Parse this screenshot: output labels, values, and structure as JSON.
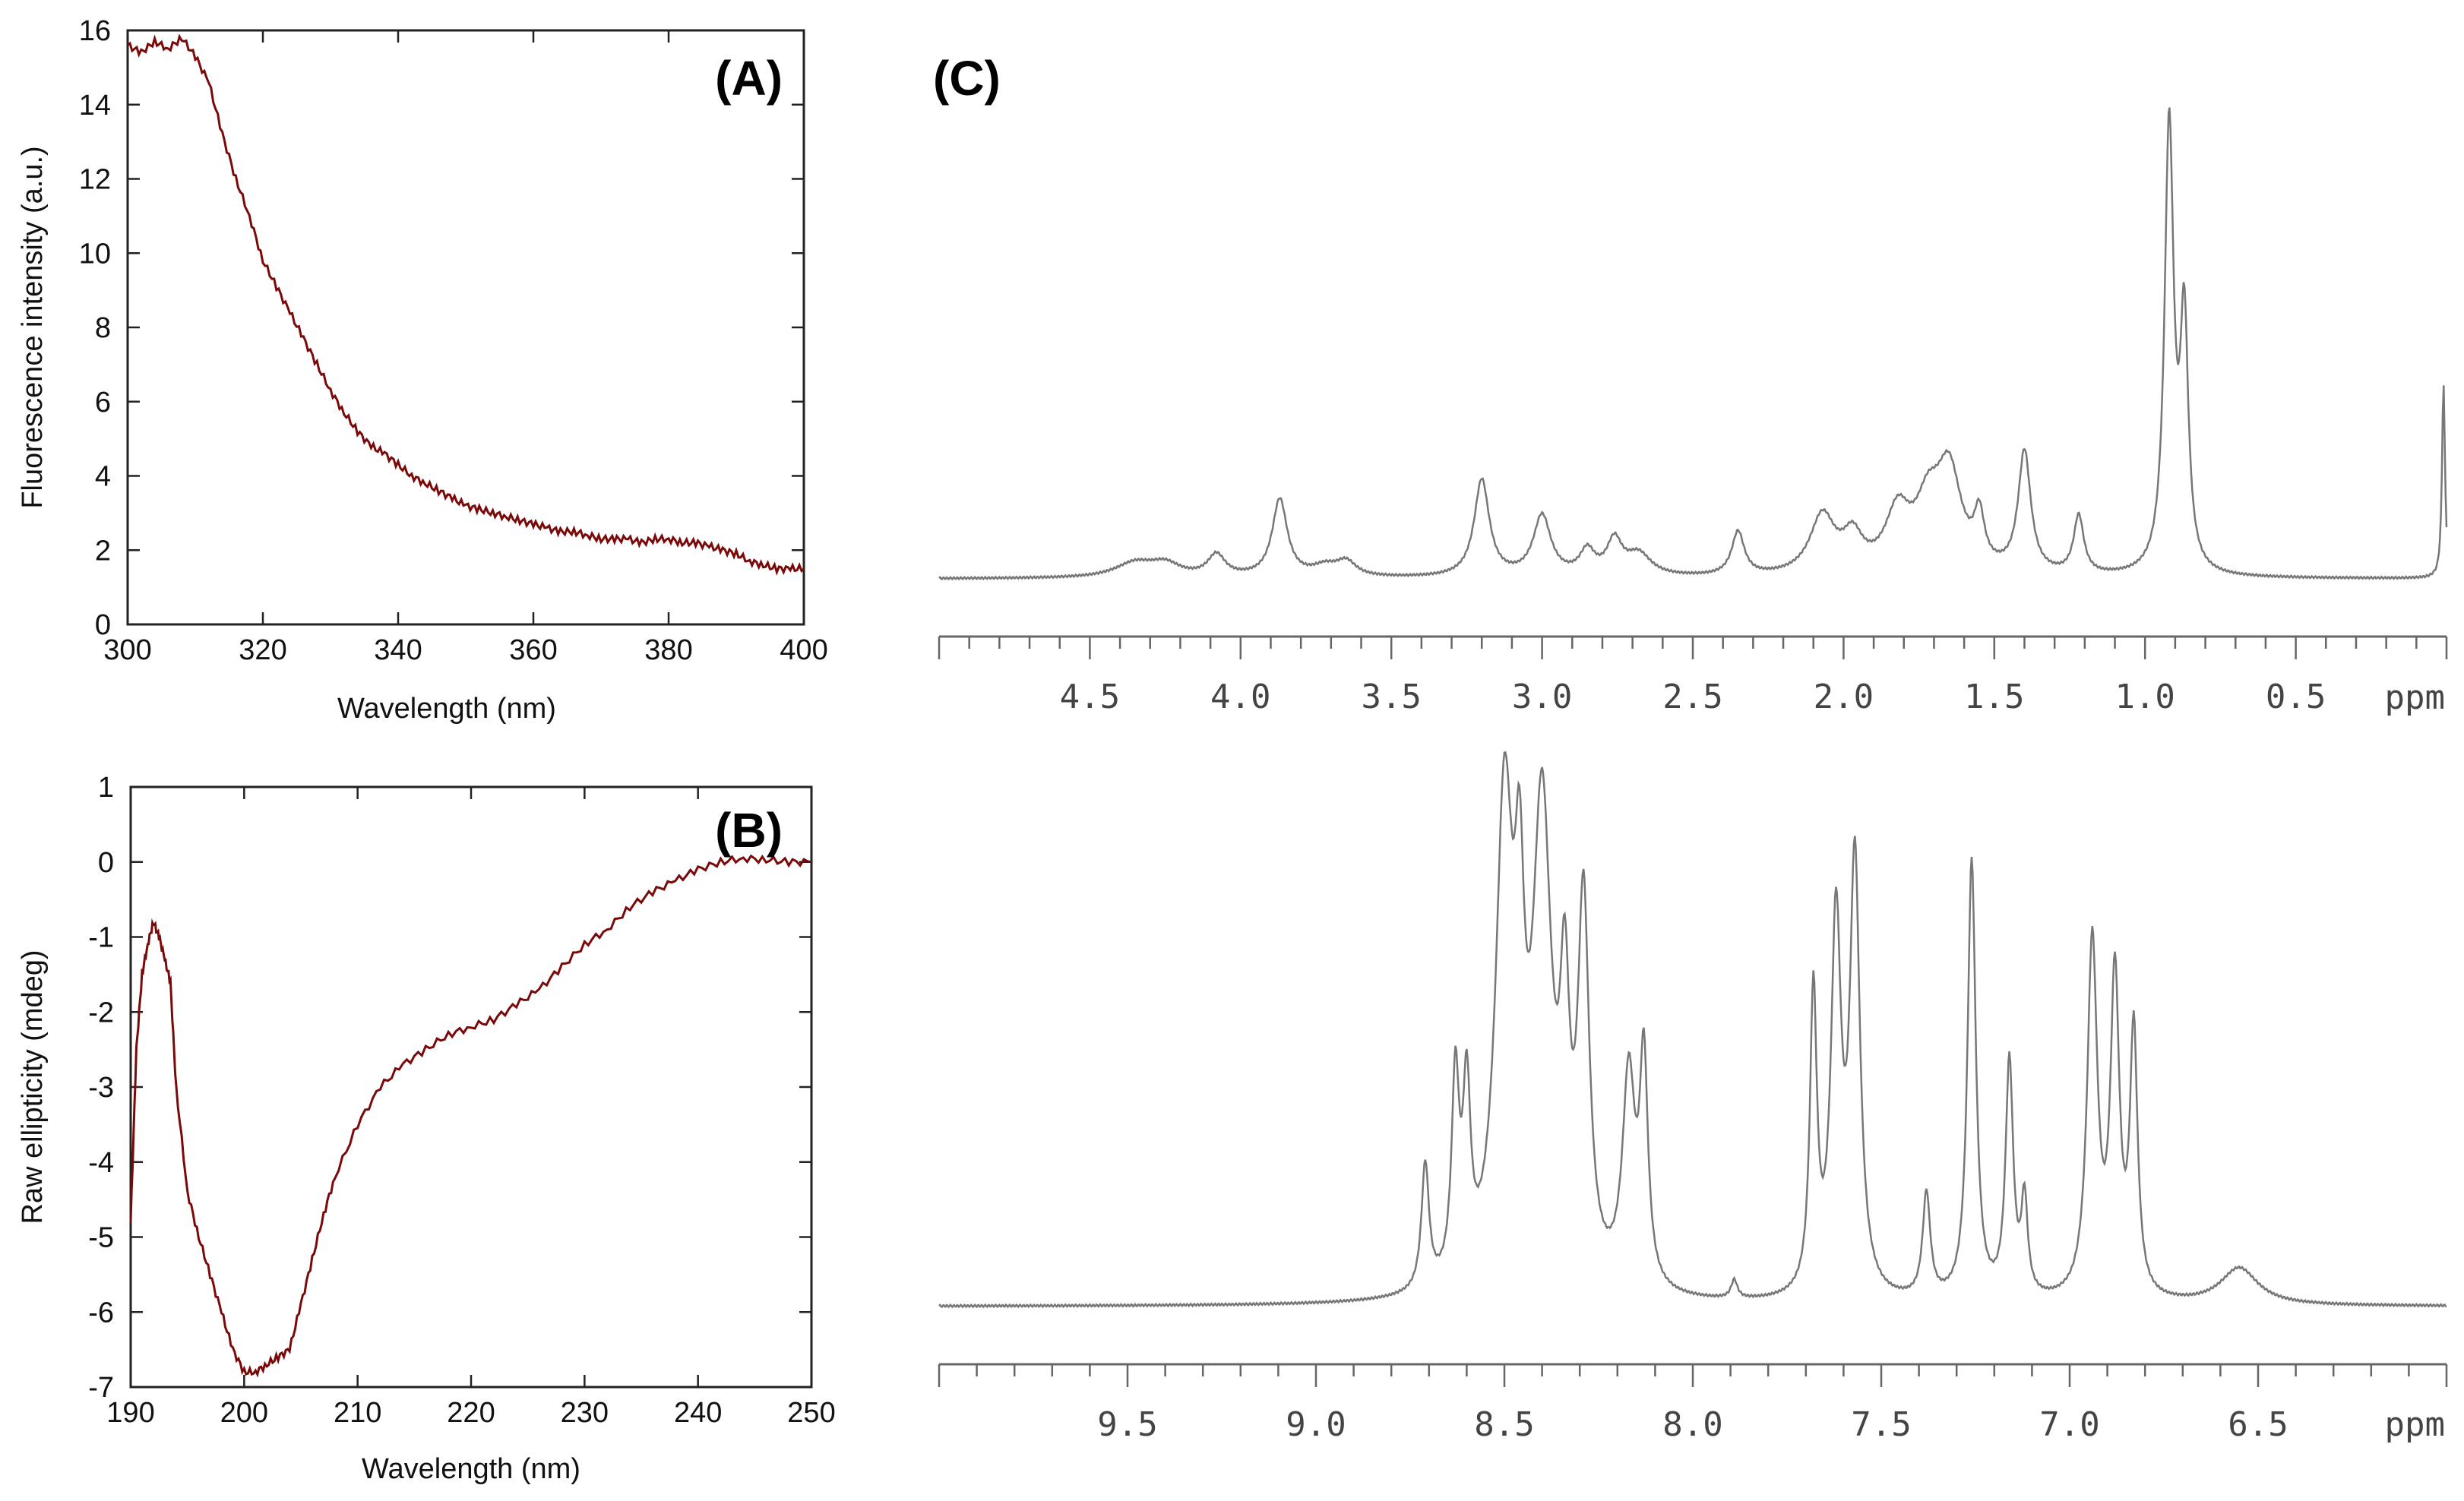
{
  "chart_data": [
    {
      "panel": "(A)",
      "type": "line",
      "xlabel": "Wavelength (nm)",
      "ylabel": "Fluorescence intensity (a.u.)",
      "xlim": [
        300,
        400
      ],
      "ylim": [
        0,
        16
      ],
      "xticks": [
        300,
        320,
        340,
        360,
        380,
        400
      ],
      "yticks": [
        0,
        2,
        4,
        6,
        8,
        10,
        12,
        14,
        16
      ],
      "grid": false,
      "line_color": "#7a0a0a",
      "series": [
        {
          "x": [
            300,
            302,
            304,
            306,
            308,
            310,
            312,
            314,
            316,
            318,
            320,
            322,
            324,
            326,
            328,
            330,
            332,
            334,
            336,
            338,
            340,
            342,
            344,
            346,
            348,
            350,
            352,
            354,
            356,
            358,
            360,
            362,
            364,
            366,
            368,
            370,
            372,
            374,
            376,
            378,
            380,
            382,
            384,
            386,
            388,
            390,
            392,
            394,
            396,
            398,
            400
          ],
          "y": [
            15.6,
            15.4,
            15.7,
            15.5,
            15.8,
            15.3,
            14.6,
            13.2,
            12.0,
            11.0,
            9.8,
            9.1,
            8.4,
            7.7,
            7.0,
            6.3,
            5.7,
            5.2,
            4.8,
            4.6,
            4.3,
            4.0,
            3.8,
            3.6,
            3.4,
            3.2,
            3.1,
            3.0,
            2.9,
            2.8,
            2.7,
            2.6,
            2.5,
            2.5,
            2.4,
            2.3,
            2.3,
            2.3,
            2.2,
            2.3,
            2.3,
            2.2,
            2.2,
            2.1,
            2.0,
            1.9,
            1.7,
            1.6,
            1.5,
            1.5,
            1.5
          ]
        }
      ]
    },
    {
      "panel": "(B)",
      "type": "line",
      "xlabel": "Wavelength (nm)",
      "ylabel": "Raw ellipticity (mdeg)",
      "xlim": [
        190,
        250
      ],
      "ylim": [
        -7,
        1
      ],
      "xticks": [
        190,
        200,
        210,
        220,
        230,
        240,
        250
      ],
      "yticks": [
        -7,
        -6,
        -5,
        -4,
        -3,
        -2,
        -1,
        0,
        1
      ],
      "grid": false,
      "line_color": "#7a0a0a",
      "series": [
        {
          "x": [
            190,
            190.5,
            191,
            191.5,
            192,
            192.5,
            193,
            193.5,
            194,
            195,
            196,
            197,
            198,
            199,
            200,
            201,
            202,
            203,
            204,
            205,
            206,
            207,
            208,
            210,
            212,
            214,
            216,
            218,
            220,
            222,
            224,
            226,
            228,
            230,
            232,
            234,
            236,
            238,
            240,
            242,
            244,
            246,
            248,
            250
          ],
          "y": [
            -4.8,
            -2.5,
            -1.5,
            -1.1,
            -0.8,
            -1.0,
            -1.3,
            -1.6,
            -3.0,
            -4.4,
            -5.0,
            -5.5,
            -6.0,
            -6.5,
            -6.8,
            -6.8,
            -6.7,
            -6.6,
            -6.5,
            -5.9,
            -5.3,
            -4.7,
            -4.2,
            -3.5,
            -3.0,
            -2.7,
            -2.5,
            -2.3,
            -2.2,
            -2.1,
            -1.9,
            -1.7,
            -1.4,
            -1.1,
            -0.9,
            -0.6,
            -0.4,
            -0.25,
            -0.1,
            0.0,
            0.05,
            0.03,
            0.0,
            0.0
          ]
        }
      ]
    },
    {
      "panel": "(C)",
      "type": "line",
      "subplot": "upper",
      "xlabel": "ppm",
      "x_reversed": true,
      "xlim": [
        5.0,
        0.0
      ],
      "xticks": [
        4.5,
        4.0,
        3.5,
        3.0,
        2.5,
        2.0,
        1.5,
        1.0,
        0.5
      ],
      "xtick_labels": [
        "4.5",
        "4.0",
        "3.5",
        "3.0",
        "2.5",
        "2.0",
        "1.5",
        "1.0",
        "0.5"
      ],
      "y_axis_shown": false,
      "line_color": "#777777",
      "peaks": [
        {
          "ppm": 4.35,
          "h": 0.03,
          "w": 0.08
        },
        {
          "ppm": 4.25,
          "h": 0.025,
          "w": 0.06
        },
        {
          "ppm": 4.08,
          "h": 0.045,
          "w": 0.035
        },
        {
          "ppm": 3.87,
          "h": 0.16,
          "w": 0.03
        },
        {
          "ppm": 3.72,
          "h": 0.02,
          "w": 0.05
        },
        {
          "ppm": 3.65,
          "h": 0.03,
          "w": 0.04
        },
        {
          "ppm": 3.2,
          "h": 0.2,
          "w": 0.03
        },
        {
          "ppm": 3.0,
          "h": 0.125,
          "w": 0.035
        },
        {
          "ppm": 2.85,
          "h": 0.05,
          "w": 0.03
        },
        {
          "ppm": 2.76,
          "h": 0.07,
          "w": 0.03
        },
        {
          "ppm": 2.68,
          "h": 0.045,
          "w": 0.05
        },
        {
          "ppm": 2.35,
          "h": 0.09,
          "w": 0.025
        },
        {
          "ppm": 2.07,
          "h": 0.12,
          "w": 0.05
        },
        {
          "ppm": 1.97,
          "h": 0.07,
          "w": 0.04
        },
        {
          "ppm": 1.82,
          "h": 0.12,
          "w": 0.05
        },
        {
          "ppm": 1.72,
          "h": 0.12,
          "w": 0.05
        },
        {
          "ppm": 1.65,
          "h": 0.2,
          "w": 0.05
        },
        {
          "ppm": 1.55,
          "h": 0.1,
          "w": 0.02
        },
        {
          "ppm": 1.4,
          "h": 0.25,
          "w": 0.025
        },
        {
          "ppm": 1.22,
          "h": 0.12,
          "w": 0.02
        },
        {
          "ppm": 0.92,
          "h": 0.92,
          "w": 0.018
        },
        {
          "ppm": 0.87,
          "h": 0.5,
          "w": 0.016
        },
        {
          "ppm": 0.01,
          "h": 0.4,
          "w": 0.006
        }
      ]
    },
    {
      "panel": "(C)",
      "type": "line",
      "subplot": "lower",
      "xlabel": "ppm",
      "x_reversed": true,
      "xlim": [
        10.0,
        6.0
      ],
      "xticks": [
        9.5,
        9.0,
        8.5,
        8.0,
        7.5,
        7.0,
        6.5
      ],
      "xtick_labels": [
        "9.5",
        "9.0",
        "8.5",
        "8.0",
        "7.5",
        "7.0",
        "6.5"
      ],
      "y_axis_shown": false,
      "line_color": "#777777",
      "peaks": [
        {
          "ppm": 8.71,
          "h": 0.24,
          "w": 0.012
        },
        {
          "ppm": 8.63,
          "h": 0.38,
          "w": 0.012
        },
        {
          "ppm": 8.6,
          "h": 0.34,
          "w": 0.012
        },
        {
          "ppm": 8.5,
          "h": 0.9,
          "w": 0.028
        },
        {
          "ppm": 8.46,
          "h": 0.5,
          "w": 0.015
        },
        {
          "ppm": 8.4,
          "h": 0.88,
          "w": 0.03
        },
        {
          "ppm": 8.34,
          "h": 0.45,
          "w": 0.015
        },
        {
          "ppm": 8.29,
          "h": 0.7,
          "w": 0.018
        },
        {
          "ppm": 8.17,
          "h": 0.4,
          "w": 0.02
        },
        {
          "ppm": 8.13,
          "h": 0.42,
          "w": 0.013
        },
        {
          "ppm": 7.89,
          "h": 0.035,
          "w": 0.01
        },
        {
          "ppm": 7.68,
          "h": 0.57,
          "w": 0.011
        },
        {
          "ppm": 7.62,
          "h": 0.7,
          "w": 0.016
        },
        {
          "ppm": 7.57,
          "h": 0.82,
          "w": 0.016
        },
        {
          "ppm": 7.38,
          "h": 0.2,
          "w": 0.012
        },
        {
          "ppm": 7.26,
          "h": 0.84,
          "w": 0.013
        },
        {
          "ppm": 7.16,
          "h": 0.45,
          "w": 0.012
        },
        {
          "ppm": 7.12,
          "h": 0.18,
          "w": 0.01
        },
        {
          "ppm": 6.94,
          "h": 0.68,
          "w": 0.016
        },
        {
          "ppm": 6.88,
          "h": 0.6,
          "w": 0.014
        },
        {
          "ppm": 6.83,
          "h": 0.5,
          "w": 0.012
        },
        {
          "ppm": 6.55,
          "h": 0.07,
          "w": 0.06
        }
      ]
    }
  ]
}
